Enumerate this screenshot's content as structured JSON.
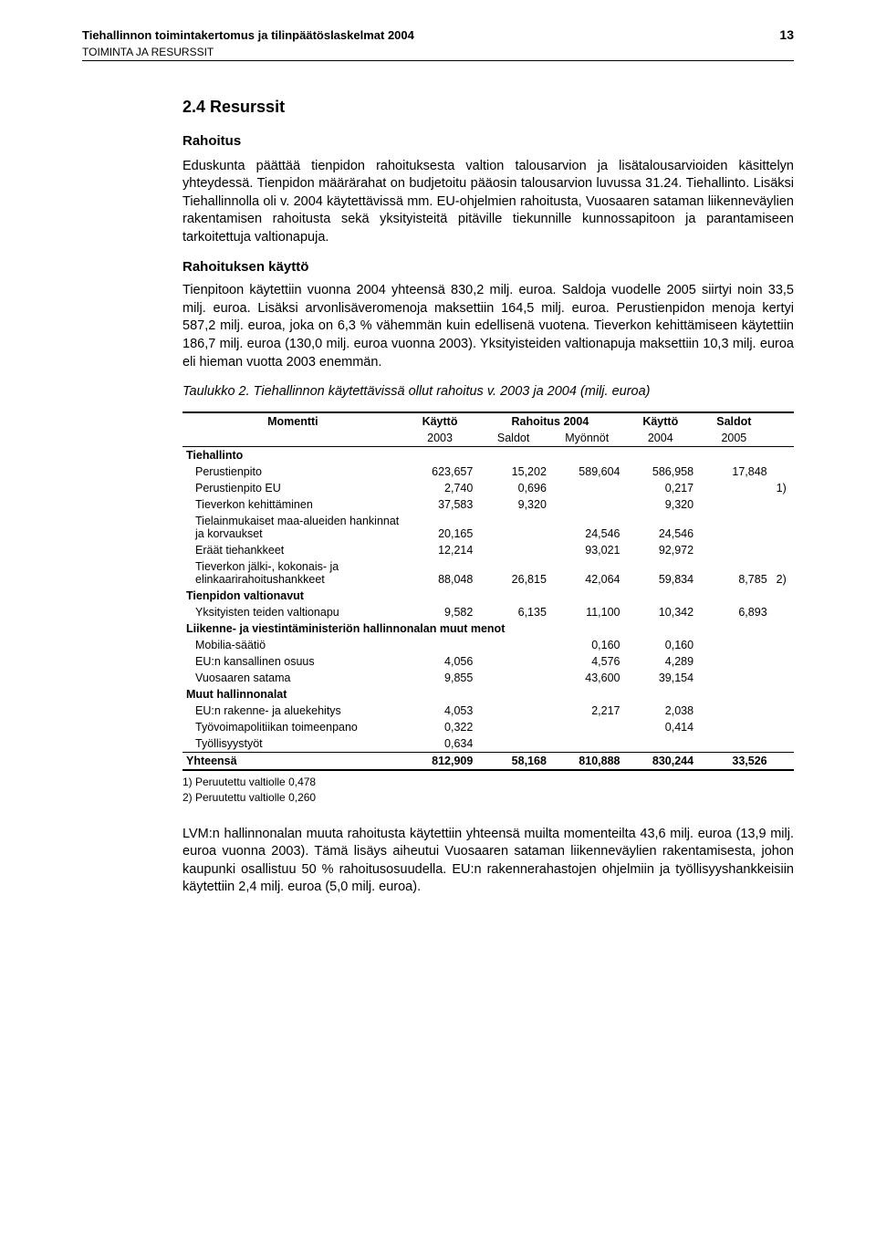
{
  "header": {
    "title": "Tiehallinnon toimintakertomus ja tilinpäätöslaskelmat 2004",
    "subtitle": "TOIMINTA JA RESURSSIT",
    "page_number": "13"
  },
  "section": {
    "heading": "2.4   Resurssit",
    "sub1": "Rahoitus",
    "para1": "Eduskunta päättää tienpidon rahoituksesta valtion talousarvion ja lisätalousarvioiden käsittelyn yhteydessä. Tienpidon määrärahat on budjetoitu pääosin talousarvion luvussa 31.24. Tiehallinto. Lisäksi Tiehallinnolla oli v. 2004 käytettävissä mm. EU-ohjelmien rahoitusta, Vuosaaren sataman liikenneväylien rakentamisen rahoitusta sekä yksityisteitä pitäville tiekunnille kunnossapitoon ja parantamiseen tarkoitettuja valtionapuja.",
    "sub2": "Rahoituksen käyttö",
    "para2": "Tienpitoon käytettiin vuonna 2004 yhteensä 830,2 milj. euroa. Saldoja vuodelle 2005 siirtyi noin 33,5 milj. euroa. Lisäksi arvonlisäveromenoja maksettiin 164,5 milj. euroa. Perustienpidon menoja kertyi 587,2 milj. euroa, joka on 6,3 % vähemmän kuin edellisenä vuotena. Tieverkon kehittämiseen käytettiin 186,7 milj. euroa (130,0 milj. euroa vuonna 2003). Yksityisteiden valtionapuja maksettiin 10,3 milj. euroa eli hieman vuotta 2003 enemmän.",
    "caption": "Taulukko 2. Tiehallinnon käytettävissä ollut rahoitus v. 2003 ja 2004 (milj. euroa)",
    "para3": "LVM:n hallinnonalan muuta rahoitusta käytettiin yhteensä muilta momenteilta 43,6 milj. euroa (13,9 milj. euroa vuonna 2003). Tämä lisäys aiheutui Vuosaaren sataman liikenneväylien rakentamisesta, johon kaupunki osallistuu 50 % rahoitusosuudella. EU:n rakennerahastojen ohjelmiin ja työllisyyshankkeisiin käytettiin 2,4 milj. euroa (5,0 milj. euroa)."
  },
  "table": {
    "col_header_momentti": "Momentti",
    "col_header_kaytto_2003": "Käyttö",
    "col_header_rahoitus_2004": "Rahoitus 2004",
    "col_header_kaytto_2004": "Käyttö",
    "col_header_saldot_2005": "Saldot",
    "sub_2003": "2003",
    "sub_saldot": "Saldot",
    "sub_myonnot": "Myönnöt",
    "sub_2004": "2004",
    "sub_2005": "2005",
    "groups": [
      {
        "title": "Tiehallinto",
        "rows": [
          {
            "label": "Perustienpito",
            "v": [
              "623,657",
              "15,202",
              "589,604",
              "586,958",
              "17,848",
              ""
            ]
          },
          {
            "label": "Perustienpito  EU",
            "v": [
              "2,740",
              "0,696",
              "",
              "0,217",
              "",
              "1)"
            ]
          },
          {
            "label": "Tieverkon kehittäminen",
            "v": [
              "37,583",
              "9,320",
              "",
              "9,320",
              "",
              ""
            ]
          },
          {
            "label": "Tielainmukaiset maa-alueiden hankinnat ja korvaukset",
            "v": [
              "20,165",
              "",
              "24,546",
              "24,546",
              "",
              ""
            ]
          },
          {
            "label": "Eräät tiehankkeet",
            "v": [
              "12,214",
              "",
              "93,021",
              "92,972",
              "",
              ""
            ]
          },
          {
            "label": "Tieverkon jälki-, kokonais- ja elinkaarirahoitushankkeet",
            "v": [
              "88,048",
              "26,815",
              "42,064",
              "59,834",
              "8,785",
              "2)"
            ]
          }
        ]
      },
      {
        "title": "Tienpidon valtionavut",
        "rows": [
          {
            "label": "Yksityisten teiden valtionapu",
            "v": [
              "9,582",
              "6,135",
              "11,100",
              "10,342",
              "6,893",
              ""
            ]
          }
        ]
      },
      {
        "title": "Liikenne- ja viestintäministeriön hallinnonalan muut menot",
        "rows": [
          {
            "label": "Mobilia-säätiö",
            "v": [
              "",
              "",
              "0,160",
              "0,160",
              "",
              ""
            ]
          },
          {
            "label": "EU:n kansallinen osuus",
            "v": [
              "4,056",
              "",
              "4,576",
              "4,289",
              "",
              ""
            ]
          },
          {
            "label": "Vuosaaren satama",
            "v": [
              "9,855",
              "",
              "43,600",
              "39,154",
              "",
              ""
            ]
          }
        ]
      },
      {
        "title": "Muut hallinnonalat",
        "rows": [
          {
            "label": "EU:n rakenne- ja aluekehitys",
            "v": [
              "4,053",
              "",
              "2,217",
              "2,038",
              "",
              ""
            ]
          },
          {
            "label": "Työvoimapolitiikan toimeenpano",
            "v": [
              "0,322",
              "",
              "",
              "0,414",
              "",
              ""
            ]
          },
          {
            "label": "Työllisyystyöt",
            "v": [
              "0,634",
              "",
              "",
              "",
              "",
              ""
            ]
          }
        ]
      }
    ],
    "total": {
      "label": "Yhteensä",
      "v": [
        "812,909",
        "58,168",
        "810,888",
        "830,244",
        "33,526",
        ""
      ]
    },
    "footnotes": [
      "1) Peruutettu valtiolle 0,478",
      "2) Peruutettu valtiolle 0,260"
    ]
  }
}
